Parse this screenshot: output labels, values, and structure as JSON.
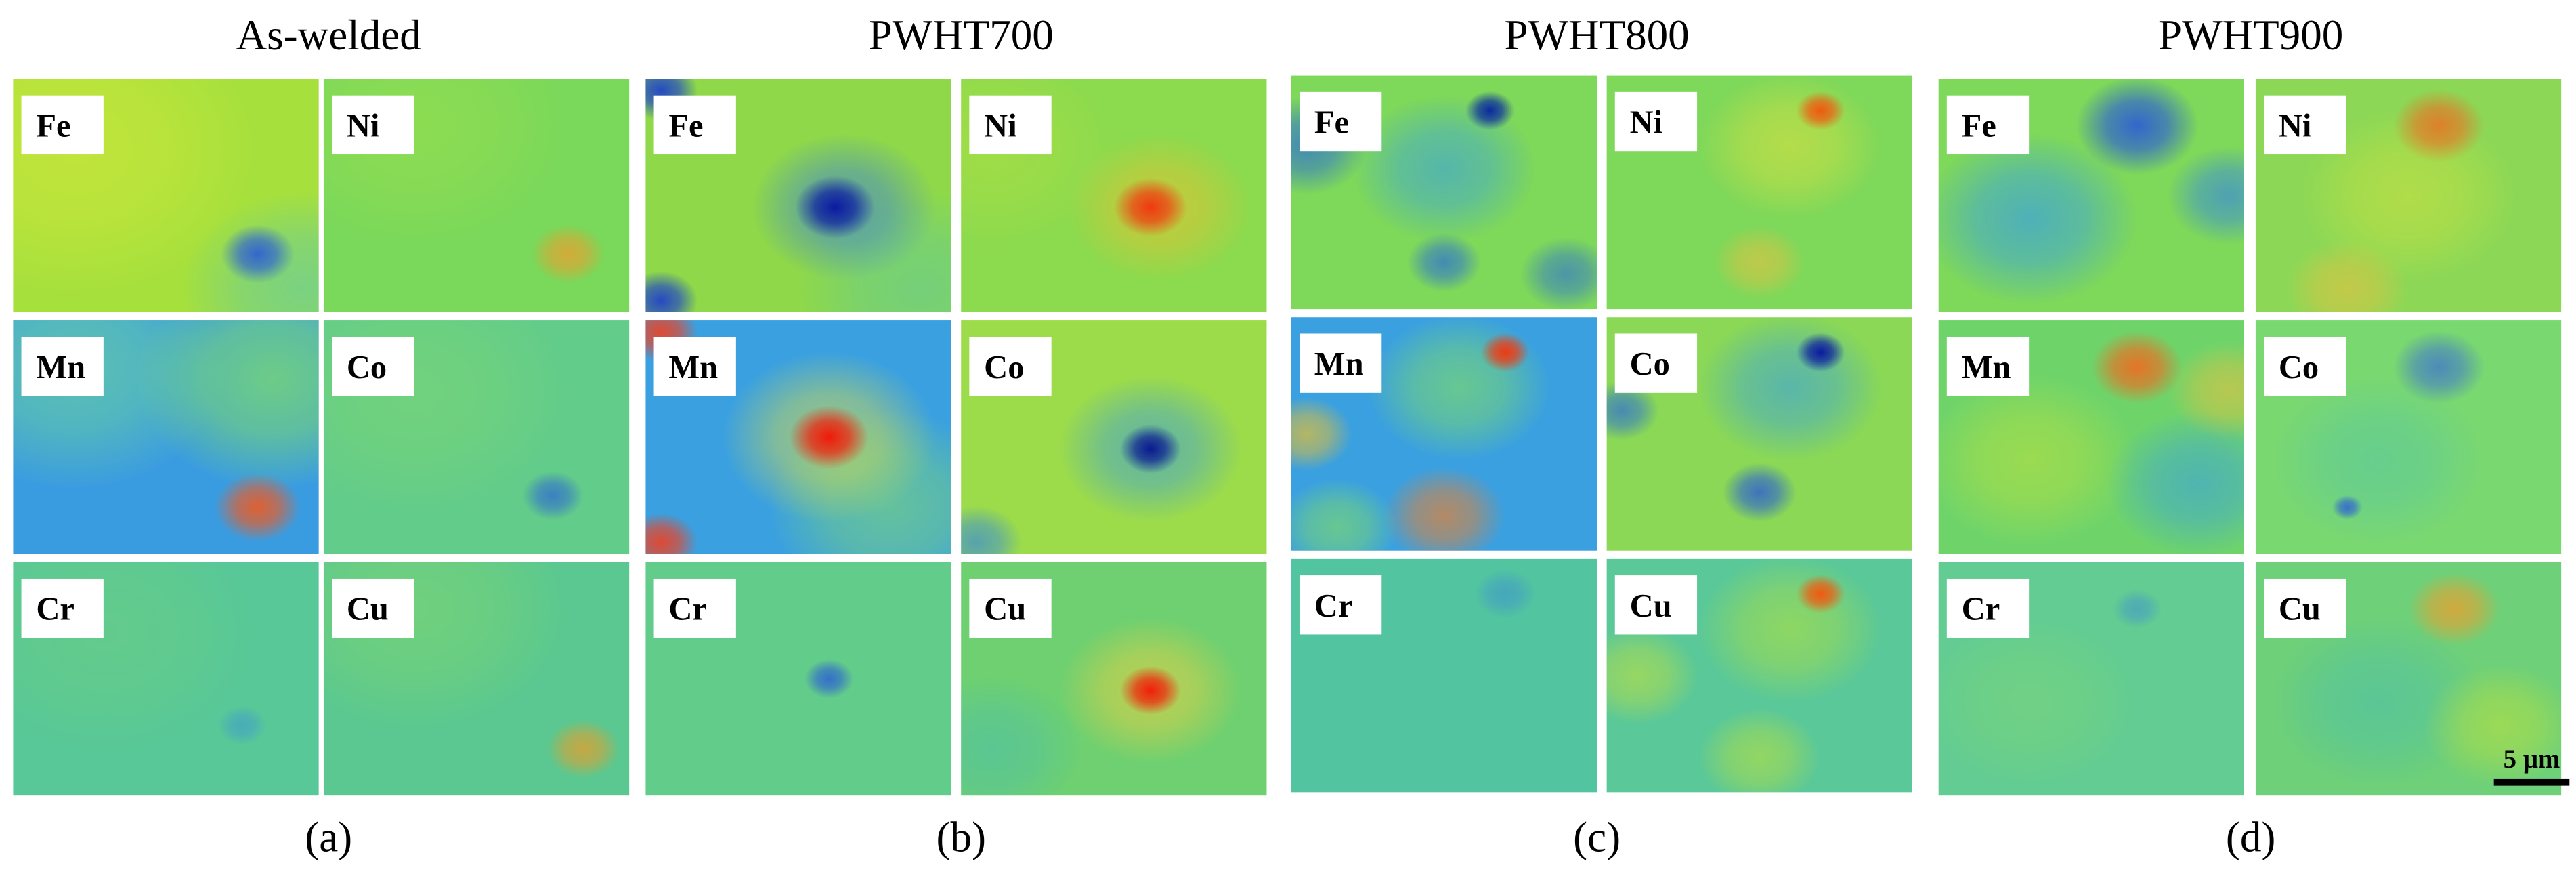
{
  "groups": [
    {
      "title": "As-welded",
      "panel_label": "(a)",
      "maps": [
        "Fe",
        "Ni",
        "Mn",
        "Co",
        "Cr",
        "Cu"
      ]
    },
    {
      "title": "PWHT700",
      "panel_label": "(b)",
      "maps": [
        "Fe",
        "Ni",
        "Mn",
        "Co",
        "Cr",
        "Cu"
      ]
    },
    {
      "title": "PWHT800",
      "panel_label": "(c)",
      "maps": [
        "Fe",
        "Ni",
        "Mn",
        "Co",
        "Cr",
        "Cu"
      ]
    },
    {
      "title": "PWHT900",
      "panel_label": "(d)",
      "maps": [
        "Fe",
        "Ni",
        "Mn",
        "Co",
        "Cr",
        "Cu"
      ]
    }
  ],
  "scale_bar": "5 µm"
}
